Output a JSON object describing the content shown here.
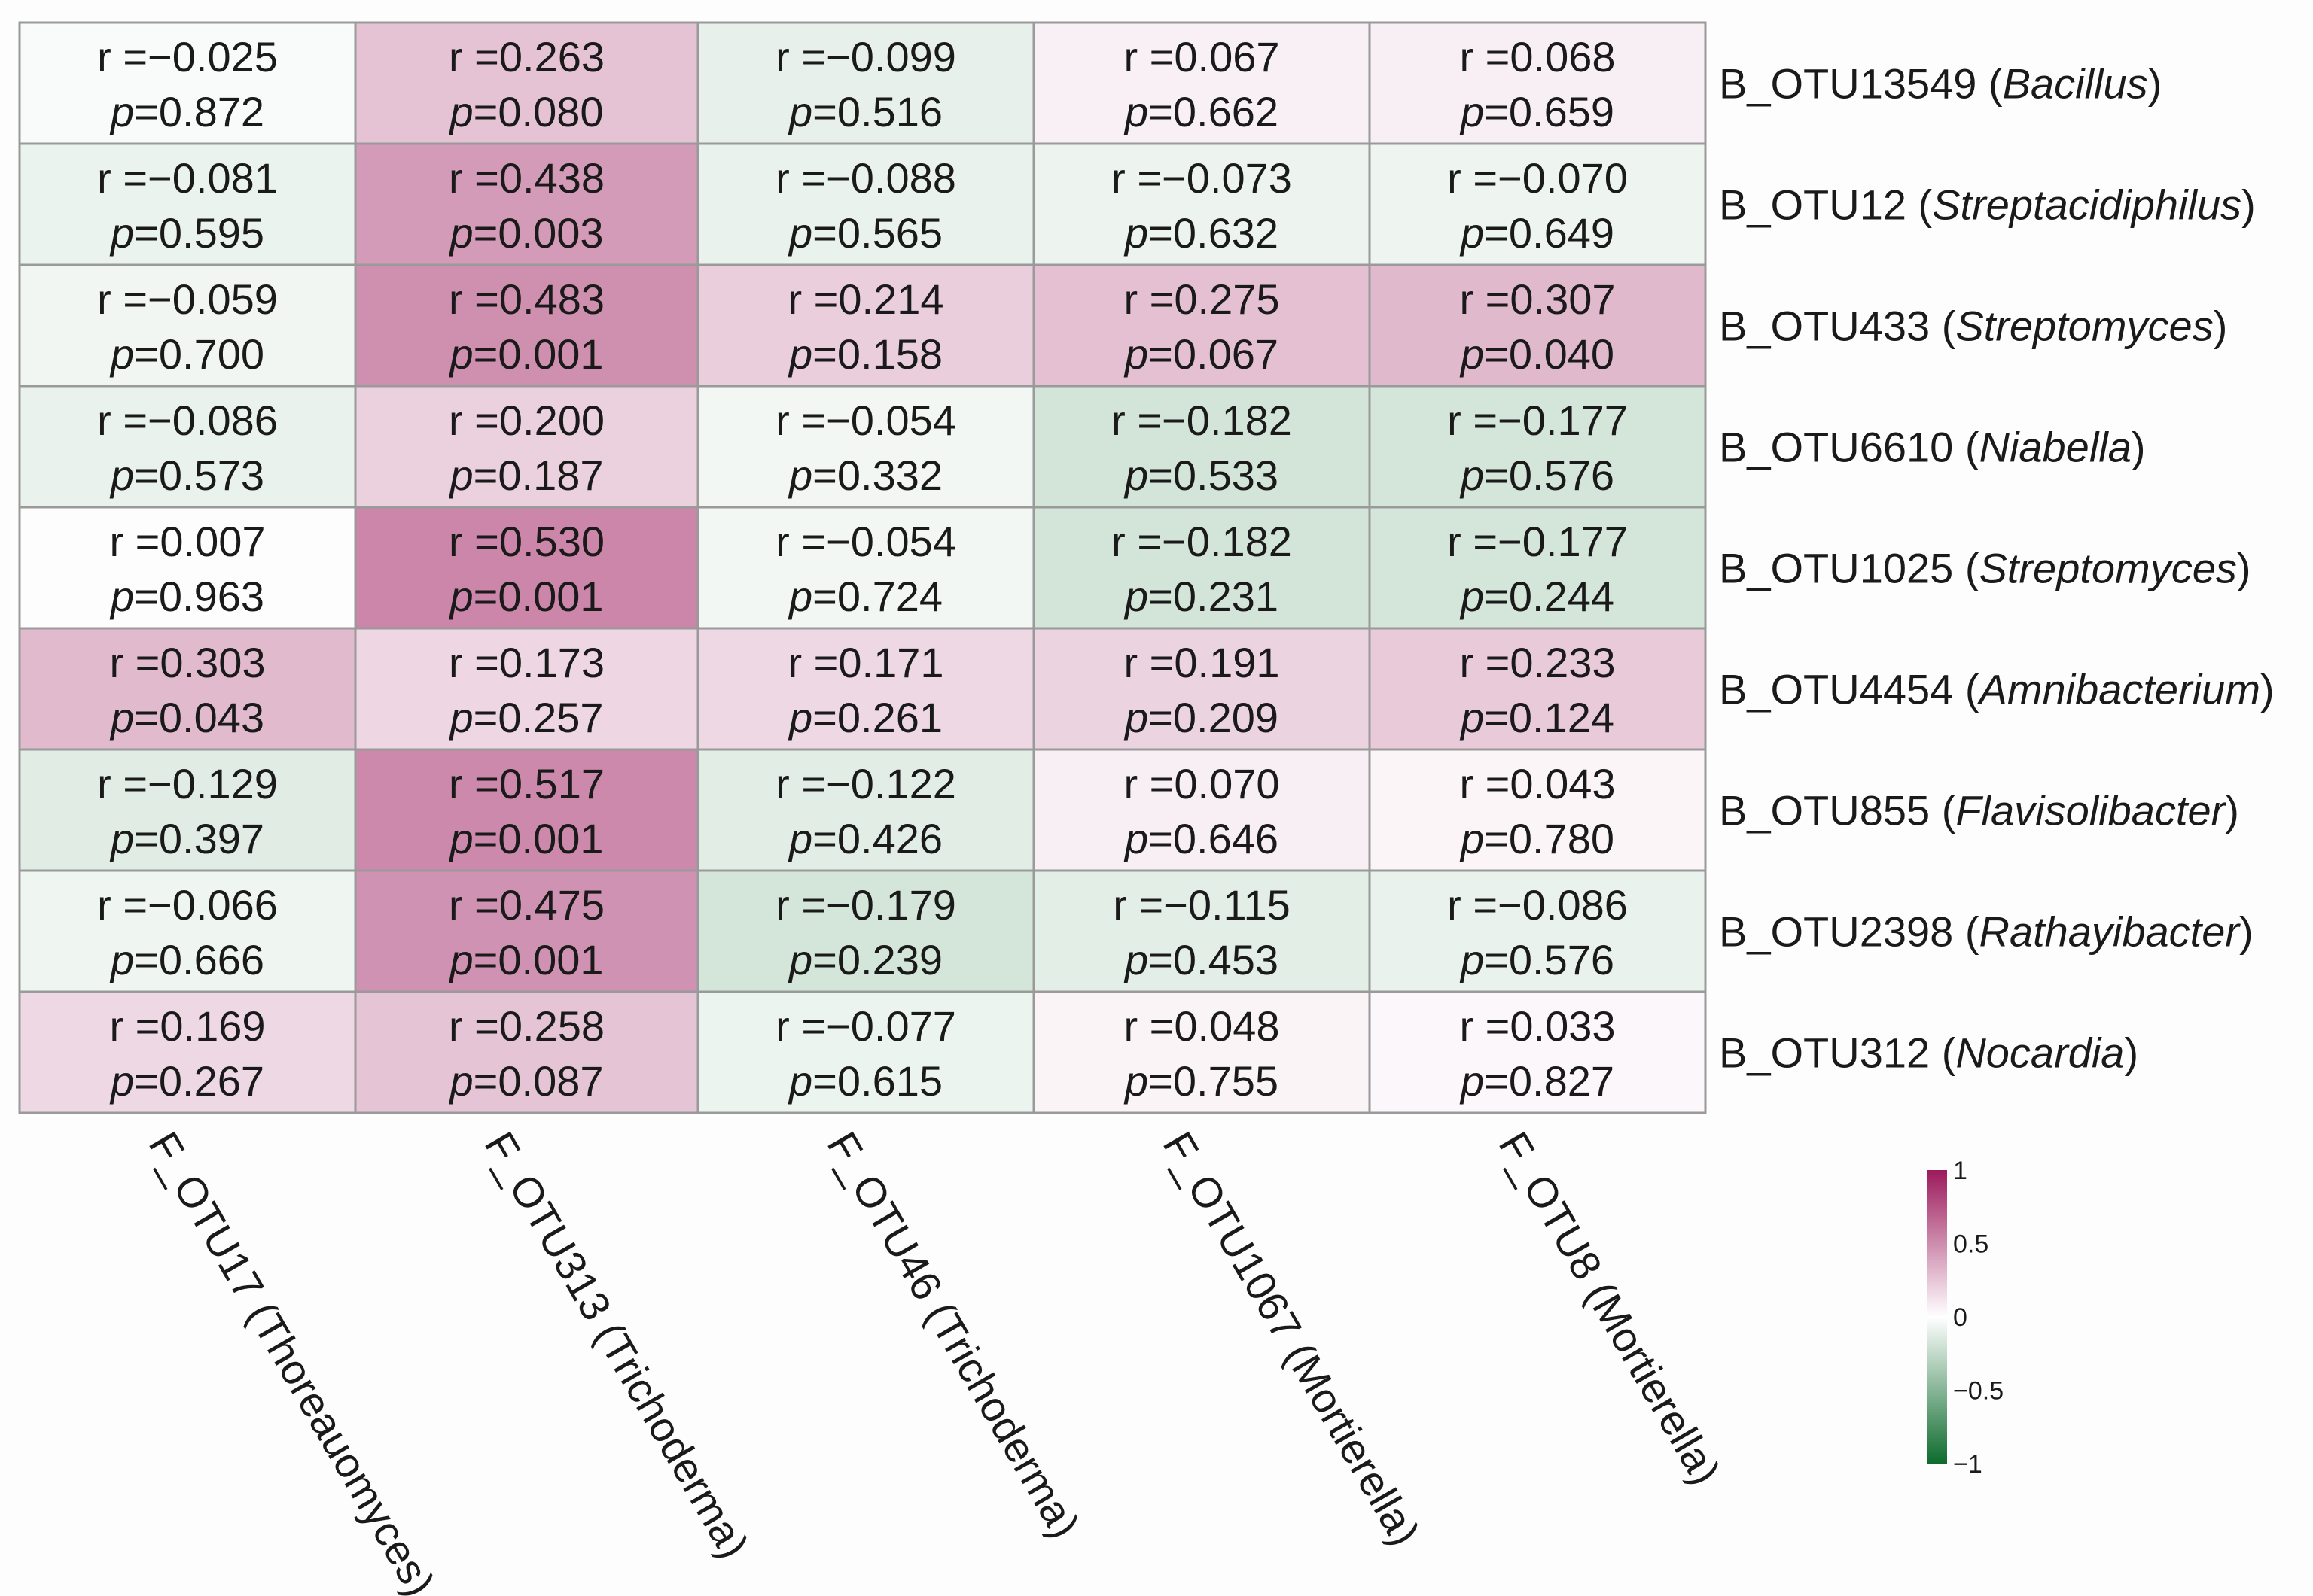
{
  "chart_data": {
    "type": "heatmap",
    "rows": [
      {
        "otu": "B_OTU13549",
        "genus": "Bacillus"
      },
      {
        "otu": "B_OTU12",
        "genus": "Streptacidiphilus"
      },
      {
        "otu": "B_OTU433",
        "genus": "Streptomyces"
      },
      {
        "otu": "B_OTU6610",
        "genus": "Niabella"
      },
      {
        "otu": "B_OTU1025",
        "genus": "Streptomyces"
      },
      {
        "otu": "B_OTU4454",
        "genus": "Amnibacterium"
      },
      {
        "otu": "B_OTU855",
        "genus": "Flavisolibacter"
      },
      {
        "otu": "B_OTU2398",
        "genus": "Rathayibacter"
      },
      {
        "otu": "B_OTU312",
        "genus": "Nocardia"
      }
    ],
    "columns": [
      "F_OTU17 (Thoreauomyces)",
      "F_OTU313 (Trichoderma)",
      "F_OTU46 (Trichoderma)",
      "F_OTU1067 (Mortierella)",
      "F_OTU8 (Mortierella)"
    ],
    "r_text": [
      [
        "r =−0.025",
        "r =0.263",
        "r =−0.099",
        "r =0.067",
        "r =0.068"
      ],
      [
        "r =−0.081",
        "r =0.438",
        "r =−0.088",
        "r =−0.073",
        "r =−0.070"
      ],
      [
        "r =−0.059",
        "r =0.483",
        "r =0.214",
        "r =0.275",
        "r =0.307"
      ],
      [
        "r =−0.086",
        "r =0.200",
        "r =−0.054",
        "r =−0.182",
        "r =−0.177"
      ],
      [
        "r =0.007",
        "r =0.530",
        "r =−0.054",
        "r =−0.182",
        "r =−0.177"
      ],
      [
        "r =0.303",
        "r =0.173",
        "r =0.171",
        "r =0.191",
        "r =0.233"
      ],
      [
        "r =−0.129",
        "r =0.517",
        "r =−0.122",
        "r =0.070",
        "r =0.043"
      ],
      [
        "r =−0.066",
        "r =0.475",
        "r =−0.179",
        "r =−0.115",
        "r =−0.086"
      ],
      [
        "r =0.169",
        "r =0.258",
        "r =−0.077",
        "r =0.048",
        "r =0.033"
      ]
    ],
    "p_text": [
      [
        "0.872",
        "0.080",
        "0.516",
        "0.662",
        "0.659"
      ],
      [
        "0.595",
        "0.003",
        "0.565",
        "0.632",
        "0.649"
      ],
      [
        "0.700",
        "0.001",
        "0.158",
        "0.067",
        "0.040"
      ],
      [
        "0.573",
        "0.187",
        "0.332",
        "0.533",
        "0.576"
      ],
      [
        "0.963",
        "0.001",
        "0.724",
        "0.231",
        "0.244"
      ],
      [
        "0.043",
        "0.257",
        "0.261",
        "0.209",
        "0.124"
      ],
      [
        "0.397",
        "0.001",
        "0.426",
        "0.646",
        "0.780"
      ],
      [
        "0.666",
        "0.001",
        "0.239",
        "0.453",
        "0.576"
      ],
      [
        "0.267",
        "0.087",
        "0.615",
        "0.755",
        "0.827"
      ]
    ],
    "r_values": [
      [
        -0.025,
        0.263,
        -0.099,
        0.067,
        0.068
      ],
      [
        -0.081,
        0.438,
        -0.088,
        -0.073,
        -0.07
      ],
      [
        -0.059,
        0.483,
        0.214,
        0.275,
        0.307
      ],
      [
        -0.086,
        0.2,
        -0.054,
        -0.182,
        -0.177
      ],
      [
        0.007,
        0.53,
        -0.054,
        -0.182,
        -0.177
      ],
      [
        0.303,
        0.173,
        0.171,
        0.191,
        0.233
      ],
      [
        -0.129,
        0.517,
        -0.122,
        0.07,
        0.043
      ],
      [
        -0.066,
        0.475,
        -0.179,
        -0.115,
        -0.086
      ],
      [
        0.169,
        0.258,
        -0.077,
        0.048,
        0.033
      ]
    ],
    "p_prefix": "p=",
    "legend": {
      "range": [
        -1,
        1
      ],
      "ticks": [
        {
          "value": 1,
          "label": "1"
        },
        {
          "value": 0.5,
          "label": "0.5"
        },
        {
          "value": 0,
          "label": "0"
        },
        {
          "value": -0.5,
          "label": "−0.5"
        },
        {
          "value": -1,
          "label": "−1"
        }
      ],
      "color_high": "#9c1a5c",
      "color_mid": "#ffffff",
      "color_low": "#0e6b2e"
    },
    "grid_color": "#9a9a9a"
  }
}
